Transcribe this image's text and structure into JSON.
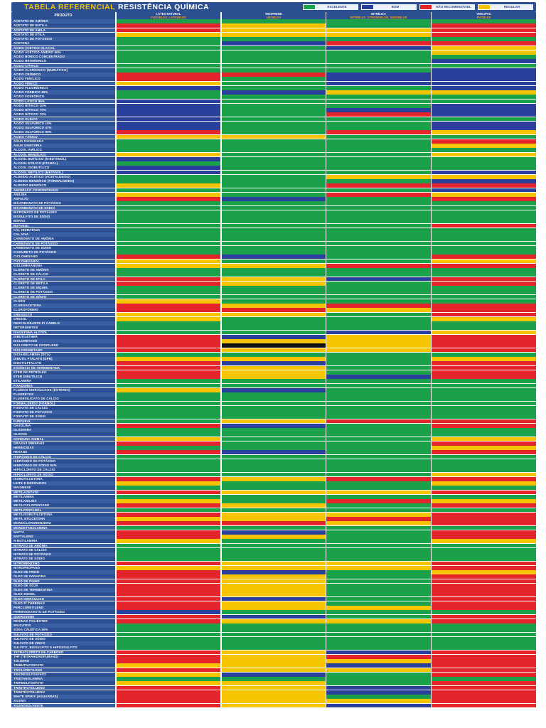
{
  "title": {
    "left": "TABELA REFERENCIAL",
    "right": "RESISTÊNCIA QUÍMICA"
  },
  "legend": [
    {
      "label": "Excelente",
      "color": "#1aa14a"
    },
    {
      "label": "Bom",
      "color": "#2a3f9c"
    },
    {
      "label": "Não recomendável",
      "color": "#e3242b"
    },
    {
      "label": "Regular",
      "color": "#f6c500"
    }
  ],
  "columns": [
    {
      "title": "Produto",
      "subtitle": ""
    },
    {
      "title": "Látex natural",
      "subtitle": "Flexiblex, Latexblex"
    },
    {
      "title": "Neoprene",
      "subtitle": "Neoblex"
    },
    {
      "title": "Nitrílica",
      "subtitle": "Nitriblex, Strongblue, Sensiblue"
    },
    {
      "title": "Vinil/PVC",
      "subtitle": "Pvcblex"
    }
  ],
  "ratings": {
    "E": "#1aa14a",
    "B": "#2a3f9c",
    "N": "#e3242b",
    "R": "#f6c500",
    "X": "#111111"
  },
  "rows": [
    {
      "name": "Acetato de Amônia",
      "r": "EEEE"
    },
    {
      "name": "Acetato de Butila",
      "r": "NREN"
    },
    {
      "name": "Acetato de Amila",
      "r": "NRRN"
    },
    {
      "name": "Acetato de Etila",
      "r": "RRRN"
    },
    {
      "name": "Acetato de Potássio",
      "r": "EEEE"
    },
    {
      "name": "Acetona",
      "r": "EBNN"
    },
    {
      "name": "Ácido Acético Glacial",
      "r": "EEBR"
    },
    {
      "name": "Ácido Acético Anidro 50%",
      "r": "EEER"
    },
    {
      "name": "Ácido Bórico Concentrado",
      "r": "EEEE"
    },
    {
      "name": "Ácido Bromídrico",
      "r": "EEEB"
    },
    {
      "name": "Ácido Cítrico",
      "r": "EEEE"
    },
    {
      "name": "Ácido Clorídrico (Muriático)",
      "r": "EEEB"
    },
    {
      "name": "Ácido Crômico",
      "r": "NNBB"
    },
    {
      "name": "Ácido Fenílico",
      "r": "NEBB"
    },
    {
      "name": "Ácido Fênico",
      "r": "REBB"
    },
    {
      "name": "Ácido Fluorídrico",
      "r": "BEEB"
    },
    {
      "name": "Ácido Fórmico 90%",
      "r": "EBRR"
    },
    {
      "name": "Ácido Fosfórico",
      "r": "EEEE"
    },
    {
      "name": "Ácido Lático 85%",
      "r": "BEEE"
    },
    {
      "name": "Ácido Nítrico 10%",
      "r": "BEEB"
    },
    {
      "name": "Ácido Nítrico 70%",
      "r": "BEBB"
    },
    {
      "name": "Ácido Nítrico 70%",
      "r": "BENB"
    },
    {
      "name": "Ácido Oleico",
      "r": "BEEE"
    },
    {
      "name": "Ácido Sulfúrico 10%",
      "r": "BEEB"
    },
    {
      "name": "Ácido Sulfúrico 47%",
      "r": "BEEB"
    },
    {
      "name": "Ácido Sulfúrico 95%",
      "r": "NENR"
    },
    {
      "name": "Ácido Tânico",
      "r": "RREE"
    },
    {
      "name": "Água Oxigenada",
      "r": "EEEN"
    },
    {
      "name": "Água Sanitária",
      "r": "EEER"
    },
    {
      "name": "Álcool Amílico",
      "r": "EEEE"
    },
    {
      "name": "Álcool Benzílico",
      "r": "REER"
    },
    {
      "name": "Álcool Butílico (N-Butanol)",
      "r": "BEEE"
    },
    {
      "name": "Álcool Etílico (Etanol)",
      "r": "EEEE"
    },
    {
      "name": "Álcool Isobutílico",
      "r": "BEEE"
    },
    {
      "name": "Álcool Metílico (Metanol)",
      "r": "BEEB"
    },
    {
      "name": "Aldeído Acético (Acetaldeído)",
      "r": "EERR"
    },
    {
      "name": "Aldeído Benzóico (Formaldeído)",
      "r": "EEEB"
    },
    {
      "name": "Aldeído Benzóico",
      "r": "RENN"
    },
    {
      "name": "Amoníaco Concentrado",
      "r": "EEEB"
    },
    {
      "name": "Anilina",
      "r": "RENR"
    },
    {
      "name": "Asfalto",
      "r": "NBEN"
    },
    {
      "name": "Bicarbonato de Potássio",
      "r": "EEEE"
    },
    {
      "name": "Bicarbonato de Sódio",
      "r": "EEEE"
    },
    {
      "name": "Bicromato de Potássio",
      "r": "EEEE"
    },
    {
      "name": "Bissulfito de Sódio",
      "r": "EEEE"
    },
    {
      "name": "Bórax",
      "r": "EEEE"
    },
    {
      "name": "Butanol",
      "r": "EEEN"
    },
    {
      "name": "Cal Hidratada",
      "r": "EEEE"
    },
    {
      "name": "Cal Viva",
      "r": "EEEE"
    },
    {
      "name": "Carbonato de Amônia",
      "r": "EEEE"
    },
    {
      "name": "Carbonato de Potássio",
      "r": "EEEE"
    },
    {
      "name": "Carbonato de Sódio",
      "r": "EEEE"
    },
    {
      "name": "Cianureto de Potássio",
      "r": "EEEE"
    },
    {
      "name": "Ciclohexano",
      "r": "NBEN"
    },
    {
      "name": "Ciclohexanol",
      "r": "REER"
    },
    {
      "name": "Ciclohexanona",
      "r": "RRNN"
    },
    {
      "name": "Cloreto de Amônia",
      "r": "EEEE"
    },
    {
      "name": "Cloreto de Cálcio",
      "r": "EEEE"
    },
    {
      "name": "Cloreto de Etila",
      "r": "NRBN"
    },
    {
      "name": "Cloreto de Metila",
      "r": "NREN"
    },
    {
      "name": "Cloreto de Níquel",
      "r": "EEEE"
    },
    {
      "name": "Cloreto de Potássio",
      "r": "EEEE"
    },
    {
      "name": "Cloreto de Sódio",
      "r": "EEEE"
    },
    {
      "name": "Cloro",
      "r": "REEE"
    },
    {
      "name": "Cloroacetona",
      "r": "NRNN"
    },
    {
      "name": "Clorofórmio",
      "r": "NNRN"
    },
    {
      "name": "Creosoto",
      "r": "RREN"
    },
    {
      "name": "Cresol",
      "r": "REER"
    },
    {
      "name": "Descolorante p/ Cabelo",
      "r": "EEEE"
    },
    {
      "name": "Detergentes",
      "r": "EEEE"
    },
    {
      "name": "Diacetona Álcool",
      "r": "EEBR"
    },
    {
      "name": "Dibutilether",
      "r": "NBRN"
    },
    {
      "name": "Dicloretano",
      "r": "NRRN"
    },
    {
      "name": "Dicloreto de Propileno",
      "r": "NXRN"
    },
    {
      "name": "Diclorometano",
      "r": "NRRN"
    },
    {
      "name": "Dicianolamina (DCA)",
      "r": "EEEE"
    },
    {
      "name": "Dibutil Ftalato (DPB)",
      "r": "RRER"
    },
    {
      "name": "Dioctilftalato",
      "r": "NBEN"
    },
    {
      "name": "Essência de Terebentina",
      "r": "NREN"
    },
    {
      "name": "Éter de Petróleo",
      "r": "NREN"
    },
    {
      "name": "Éter Dibutílico",
      "r": "NRBN"
    },
    {
      "name": "Etilamina",
      "r": "EEEE"
    },
    {
      "name": "Fixadores",
      "r": "EEEE"
    },
    {
      "name": "Fluidos Hidráulicos (Ésteres)",
      "r": "RBEE"
    },
    {
      "name": "Fluoretos",
      "r": "EEEE"
    },
    {
      "name": "Fluorsilicato de Cálcio",
      "r": "EEEE"
    },
    {
      "name": "Formaldeído (Formol)",
      "r": "EEEE"
    },
    {
      "name": "Fosfato de Cálcio",
      "r": "EEEE"
    },
    {
      "name": "Fosfato de Potássio",
      "r": "EEEE"
    },
    {
      "name": "Fosfato de Sódio",
      "r": "EEEE"
    },
    {
      "name": "Furfural",
      "r": "ERNN"
    },
    {
      "name": "Gasolina",
      "r": "NBEN"
    },
    {
      "name": "Glicerina",
      "r": "EEEE"
    },
    {
      "name": "Glicois",
      "r": "EEEE"
    },
    {
      "name": "Gordura Animal",
      "r": "REER"
    },
    {
      "name": "Graxas Minerais",
      "r": "NEEN"
    },
    {
      "name": "Herbicidas",
      "r": "EEER"
    },
    {
      "name": "Hexano",
      "r": "NBEN"
    },
    {
      "name": "Hidróxido de Cálcio",
      "r": "EEEE"
    },
    {
      "name": "Hidróxido de Potássio",
      "r": "EEEE"
    },
    {
      "name": "Hidróxido de Sódio 50%",
      "r": "EEEE"
    },
    {
      "name": "Hipoclorito de Cálcio",
      "r": "EEEE"
    },
    {
      "name": "Hipoclorito de Sódio",
      "r": "EEER"
    },
    {
      "name": "Isobutilcetona",
      "r": "NRNN"
    },
    {
      "name": "Leite e Derivados",
      "r": "REER"
    },
    {
      "name": "Maionese",
      "r": "EEEE"
    },
    {
      "name": "Metilacetato",
      "r": "NRRN"
    },
    {
      "name": "Metilamina",
      "r": "EEEE"
    },
    {
      "name": "Metilanilina",
      "r": "RENR"
    },
    {
      "name": "Metilciclopentano",
      "r": "NREN"
    },
    {
      "name": "Metilpropanol",
      "r": "EEEE"
    },
    {
      "name": "Metilisobutilcetona",
      "r": "NRRN"
    },
    {
      "name": "Metil Etilcetona",
      "r": "RRNN"
    },
    {
      "name": "Monoclorobenzeno",
      "r": "NNRN"
    },
    {
      "name": "Monoetanolamina",
      "r": "EEEE"
    },
    {
      "name": "Nafta",
      "r": "NBEN"
    },
    {
      "name": "Naftaleno",
      "r": "NREN"
    },
    {
      "name": "N-Butilamina",
      "r": "REER"
    },
    {
      "name": "Nitrato de Amônia",
      "r": "EEEE"
    },
    {
      "name": "Nitrato de Cálcio",
      "r": "EEEE"
    },
    {
      "name": "Nitrato de Potássio",
      "r": "EEEE"
    },
    {
      "name": "Nitrato de Sódio",
      "r": "EEEE"
    },
    {
      "name": "Nitrobenzeno",
      "r": "NRRN"
    },
    {
      "name": "Nitropropano",
      "r": "RRRN"
    },
    {
      "name": "Óleo de Freio",
      "r": "NBER"
    },
    {
      "name": "Óleo de Parafina",
      "r": "NREN"
    },
    {
      "name": "Óleo de Pinho",
      "r": "NREN"
    },
    {
      "name": "Óleo de Soja",
      "r": "NREN"
    },
    {
      "name": "Óleo de Terebentina",
      "r": "NREN"
    },
    {
      "name": "Óleo Diesel",
      "r": "NREN"
    },
    {
      "name": "Óleo Hidráulico",
      "r": "NBEN"
    },
    {
      "name": "Óleo p/ Turbinas",
      "r": "NREN"
    },
    {
      "name": "Percloretileno",
      "r": "NRRN"
    },
    {
      "name": "Permanganato de Potássio",
      "r": "BEEE"
    },
    {
      "name": "Querosene",
      "r": "NBEN"
    },
    {
      "name": "Resinas Poliéster",
      "r": "NRRN"
    },
    {
      "name": "Silicatos",
      "r": "EEEE"
    },
    {
      "name": "Soda Cáustica 50%",
      "r": "EEEE"
    },
    {
      "name": "Sulfato de Potássio",
      "r": "EEEE"
    },
    {
      "name": "Sulfato de Sódio",
      "r": "EEEE"
    },
    {
      "name": "Sulfato de Zinco",
      "r": "EEEE"
    },
    {
      "name": "Sulfito, Bissulfito e Hipossulfito",
      "r": "EEEE"
    },
    {
      "name": "Tetracloreto de Carbono",
      "r": "NRBN"
    },
    {
      "name": "THF (Tetrahidrofurano)",
      "r": "NRNN"
    },
    {
      "name": "Tolueno",
      "r": "NRRN"
    },
    {
      "name": "Tributilfosfato",
      "r": "RRBN"
    },
    {
      "name": "Tricloretileno",
      "r": "NRRN"
    },
    {
      "name": "Tricresilfosfato",
      "r": "RBEN"
    },
    {
      "name": "Trietanolamina",
      "r": "EEEE"
    },
    {
      "name": "Trifenilfosfato",
      "r": "RREN"
    },
    {
      "name": "Trinitrotolueno",
      "r": "NRBN"
    },
    {
      "name": "Trinitrotolueno",
      "r": "NRBN"
    },
    {
      "name": "White Spirit (Aguarrás)",
      "r": "NREN"
    },
    {
      "name": "Xileno",
      "r": "NRRN"
    },
    {
      "name": "Xilenosolvente",
      "r": "NRBN"
    }
  ]
}
